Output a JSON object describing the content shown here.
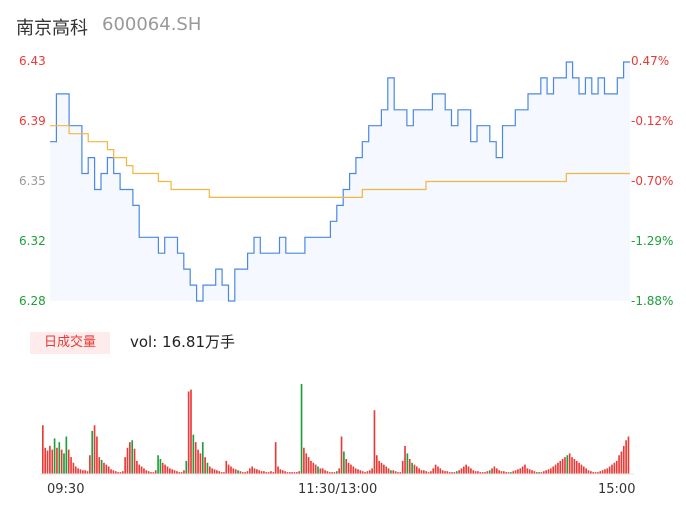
{
  "header": {
    "name": "南京高科",
    "code": "600064.SH"
  },
  "volume_panel": {
    "badge": "日成交量",
    "label": "vol: 16.81万手"
  },
  "colors": {
    "up": "#e83a37",
    "down": "#1e9e3a",
    "neutral": "#999999",
    "price_line": "#4a88e8",
    "avg_line": "#f3b640"
  },
  "chart_data": [
    {
      "type": "line",
      "title": "",
      "y_left_ticks": [
        "6.43",
        "6.39",
        "6.35",
        "6.32",
        "6.28"
      ],
      "y_right_ticks": [
        "0.47%",
        "-0.12%",
        "-0.70%",
        "-1.29%",
        "-1.88%"
      ],
      "x_ticks": [
        "09:30",
        "11:30/13:00",
        "15:00"
      ],
      "ylim": [
        6.28,
        6.43
      ],
      "series": [
        {
          "name": "price",
          "values": [
            6.38,
            6.41,
            6.41,
            6.39,
            6.39,
            6.36,
            6.37,
            6.35,
            6.36,
            6.37,
            6.36,
            6.35,
            6.35,
            6.34,
            6.32,
            6.32,
            6.32,
            6.31,
            6.32,
            6.32,
            6.31,
            6.3,
            6.29,
            6.28,
            6.29,
            6.29,
            6.3,
            6.29,
            6.28,
            6.3,
            6.3,
            6.31,
            6.32,
            6.31,
            6.31,
            6.31,
            6.32,
            6.31,
            6.31,
            6.31,
            6.32,
            6.32,
            6.32,
            6.32,
            6.33,
            6.34,
            6.35,
            6.36,
            6.37,
            6.38,
            6.39,
            6.39,
            6.4,
            6.42,
            6.4,
            6.4,
            6.39,
            6.4,
            6.4,
            6.4,
            6.41,
            6.41,
            6.4,
            6.39,
            6.4,
            6.4,
            6.38,
            6.39,
            6.39,
            6.38,
            6.37,
            6.39,
            6.39,
            6.4,
            6.4,
            6.41,
            6.41,
            6.42,
            6.41,
            6.42,
            6.42,
            6.43,
            6.42,
            6.41,
            6.42,
            6.41,
            6.42,
            6.41,
            6.41,
            6.42,
            6.43,
            6.43
          ]
        },
        {
          "name": "avg",
          "values": [
            6.39,
            6.39,
            6.39,
            6.385,
            6.385,
            6.385,
            6.38,
            6.38,
            6.38,
            6.375,
            6.37,
            6.37,
            6.365,
            6.36,
            6.36,
            6.36,
            6.36,
            6.355,
            6.355,
            6.35,
            6.35,
            6.35,
            6.35,
            6.35,
            6.35,
            6.345,
            6.345,
            6.345,
            6.345,
            6.345,
            6.345,
            6.345,
            6.345,
            6.345,
            6.345,
            6.345,
            6.345,
            6.345,
            6.345,
            6.345,
            6.345,
            6.345,
            6.345,
            6.345,
            6.345,
            6.345,
            6.345,
            6.345,
            6.345,
            6.35,
            6.35,
            6.35,
            6.35,
            6.35,
            6.35,
            6.35,
            6.35,
            6.35,
            6.35,
            6.355,
            6.355,
            6.355,
            6.355,
            6.355,
            6.355,
            6.355,
            6.355,
            6.355,
            6.355,
            6.355,
            6.355,
            6.355,
            6.355,
            6.355,
            6.355,
            6.355,
            6.355,
            6.355,
            6.355,
            6.355,
            6.355,
            6.36,
            6.36,
            6.36,
            6.36,
            6.36,
            6.36,
            6.36,
            6.36,
            6.36,
            6.36,
            6.36
          ]
        }
      ]
    },
    {
      "type": "bar",
      "title": "",
      "values": [
        52,
        28,
        25,
        30,
        26,
        38,
        28,
        34,
        26,
        22,
        40,
        26,
        18,
        12,
        8,
        6,
        5,
        4,
        4,
        3,
        20,
        46,
        52,
        40,
        18,
        15,
        12,
        10,
        8,
        5,
        4,
        3,
        2,
        2,
        3,
        18,
        28,
        34,
        36,
        27,
        14,
        10,
        8,
        6,
        4,
        3,
        2,
        2,
        4,
        20,
        16,
        12,
        10,
        8,
        6,
        5,
        4,
        3,
        2,
        2,
        4,
        14,
        88,
        90,
        42,
        34,
        26,
        22,
        34,
        18,
        12,
        8,
        6,
        5,
        4,
        3,
        2,
        2,
        14,
        10,
        8,
        6,
        5,
        4,
        3,
        2,
        2,
        3,
        6,
        8,
        6,
        5,
        4,
        3,
        3,
        2,
        2,
        3,
        2,
        34,
        8,
        5,
        4,
        3,
        2,
        2,
        2,
        2,
        2,
        3,
        96,
        28,
        22,
        18,
        14,
        12,
        10,
        8,
        6,
        6,
        4,
        3,
        2,
        2,
        2,
        3,
        6,
        40,
        24,
        16,
        12,
        10,
        8,
        6,
        5,
        4,
        3,
        2,
        3,
        4,
        6,
        68,
        20,
        14,
        12,
        10,
        8,
        6,
        4,
        4,
        3,
        2,
        2,
        14,
        30,
        22,
        16,
        12,
        10,
        8,
        6,
        4,
        4,
        3,
        2,
        3,
        6,
        10,
        8,
        6,
        4,
        3,
        3,
        2,
        2,
        2,
        3,
        4,
        6,
        8,
        10,
        8,
        6,
        4,
        3,
        3,
        2,
        2,
        2,
        3,
        4,
        6,
        8,
        6,
        4,
        3,
        3,
        2,
        2,
        2,
        3,
        4,
        5,
        6,
        8,
        10,
        6,
        5,
        4,
        3,
        2,
        2,
        2,
        3,
        4,
        5,
        6,
        8,
        10,
        12,
        14,
        16,
        18,
        20,
        22,
        18,
        16,
        14,
        12,
        10,
        8,
        6,
        4,
        3,
        2,
        2,
        2,
        3,
        4,
        5,
        6,
        8,
        10,
        12,
        14,
        20,
        24,
        30,
        36,
        40
      ],
      "colors": [
        "up",
        "up",
        "up",
        "up",
        "up",
        "down",
        "up",
        "down",
        "up",
        "down",
        "down",
        "up",
        "up",
        "up",
        "up",
        "up",
        "up",
        "up",
        "up",
        "up",
        "up",
        "down",
        "up",
        "up",
        "up",
        "down",
        "up",
        "up",
        "up",
        "up",
        "up",
        "up",
        "up",
        "up",
        "up",
        "up",
        "up",
        "up",
        "down",
        "up",
        "up",
        "up",
        "up",
        "up",
        "up",
        "up",
        "up",
        "up",
        "up",
        "down",
        "down",
        "up",
        "up",
        "up",
        "up",
        "up",
        "up",
        "up",
        "up",
        "up",
        "up",
        "down",
        "up",
        "up",
        "down",
        "up",
        "up",
        "up",
        "down",
        "up",
        "down",
        "up",
        "up",
        "up",
        "up",
        "up",
        "up",
        "up",
        "up",
        "up",
        "up",
        "up",
        "up",
        "down",
        "up",
        "up",
        "up",
        "up",
        "up",
        "up",
        "up",
        "up",
        "up",
        "up",
        "up",
        "up",
        "up",
        "up",
        "up",
        "up",
        "up",
        "up",
        "up",
        "up",
        "up",
        "up",
        "up",
        "up",
        "up",
        "up",
        "down",
        "up",
        "up",
        "up",
        "up",
        "up",
        "up",
        "down",
        "up",
        "up",
        "up",
        "up",
        "up",
        "up",
        "up",
        "down",
        "up",
        "up",
        "down",
        "up",
        "up",
        "up",
        "up",
        "up",
        "up",
        "up",
        "up",
        "up",
        "up",
        "up",
        "up",
        "up",
        "up",
        "up",
        "up",
        "up",
        "up",
        "up",
        "down",
        "up",
        "up",
        "up",
        "up",
        "up",
        "up",
        "down",
        "up",
        "down",
        "up",
        "up",
        "up",
        "up",
        "up",
        "up",
        "up",
        "up",
        "up",
        "up",
        "up",
        "up",
        "up",
        "up",
        "up",
        "up",
        "up",
        "up",
        "down",
        "up",
        "up",
        "up",
        "up",
        "up",
        "up",
        "up",
        "up",
        "up",
        "up",
        "up",
        "up",
        "up",
        "down",
        "up",
        "up",
        "up",
        "up",
        "up",
        "up",
        "up",
        "up",
        "down",
        "up",
        "up",
        "up",
        "up",
        "up",
        "up",
        "up",
        "up",
        "up",
        "up",
        "up",
        "down",
        "up",
        "up",
        "up",
        "up",
        "up",
        "up",
        "up",
        "up",
        "up",
        "up",
        "up",
        "down",
        "up",
        "up",
        "up",
        "up",
        "up",
        "up",
        "up",
        "up",
        "up",
        "up",
        "up",
        "up",
        "up",
        "up",
        "up",
        "up",
        "up",
        "up",
        "up",
        "up",
        "up",
        "up",
        "up",
        "up",
        "up",
        "up",
        "up",
        "up",
        "up",
        "up",
        "up",
        "up",
        "up",
        "up",
        "up",
        "up",
        "up",
        "up"
      ]
    }
  ]
}
